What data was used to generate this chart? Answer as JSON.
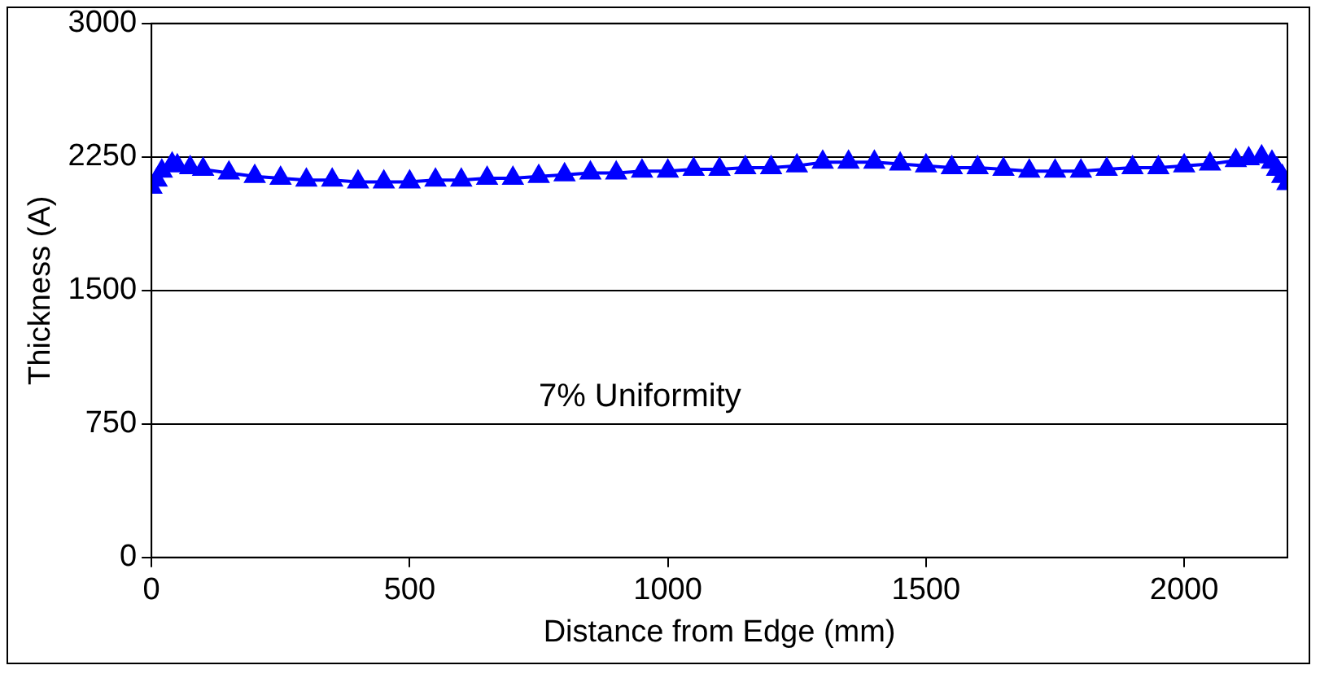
{
  "chart_data": {
    "type": "line",
    "xlabel": "Distance from Edge (mm)",
    "ylabel": "Thickness (A)",
    "annotations": [
      "7% Uniformity"
    ],
    "x": [
      0,
      10,
      20,
      40,
      50,
      75,
      100,
      150,
      200,
      250,
      300,
      350,
      400,
      450,
      500,
      550,
      600,
      650,
      700,
      750,
      800,
      850,
      900,
      950,
      1000,
      1050,
      1100,
      1150,
      1200,
      1250,
      1300,
      1350,
      1400,
      1450,
      1500,
      1550,
      1600,
      1650,
      1700,
      1750,
      1800,
      1850,
      1900,
      1950,
      2000,
      2050,
      2100,
      2125,
      2150,
      2170,
      2180,
      2190,
      2200
    ],
    "series": [
      {
        "color": "#0000ff",
        "values": [
          2080,
          2120,
          2170,
          2210,
          2200,
          2190,
          2180,
          2160,
          2140,
          2130,
          2120,
          2120,
          2110,
          2110,
          2110,
          2120,
          2120,
          2130,
          2130,
          2140,
          2150,
          2160,
          2160,
          2170,
          2170,
          2180,
          2180,
          2190,
          2190,
          2200,
          2220,
          2220,
          2220,
          2210,
          2200,
          2190,
          2190,
          2180,
          2170,
          2170,
          2170,
          2180,
          2190,
          2190,
          2200,
          2210,
          2230,
          2240,
          2250,
          2220,
          2180,
          2140,
          2100
        ]
      }
    ],
    "xlim": [
      0,
      2200
    ],
    "xticks": [
      0,
      500,
      1000,
      1500,
      2000
    ],
    "ylim": [
      0,
      3000
    ],
    "yticks": [
      0,
      750,
      1500,
      2250,
      3000
    ],
    "grid": "y",
    "legend": false,
    "marker": "triangle",
    "line_style": "solid"
  }
}
